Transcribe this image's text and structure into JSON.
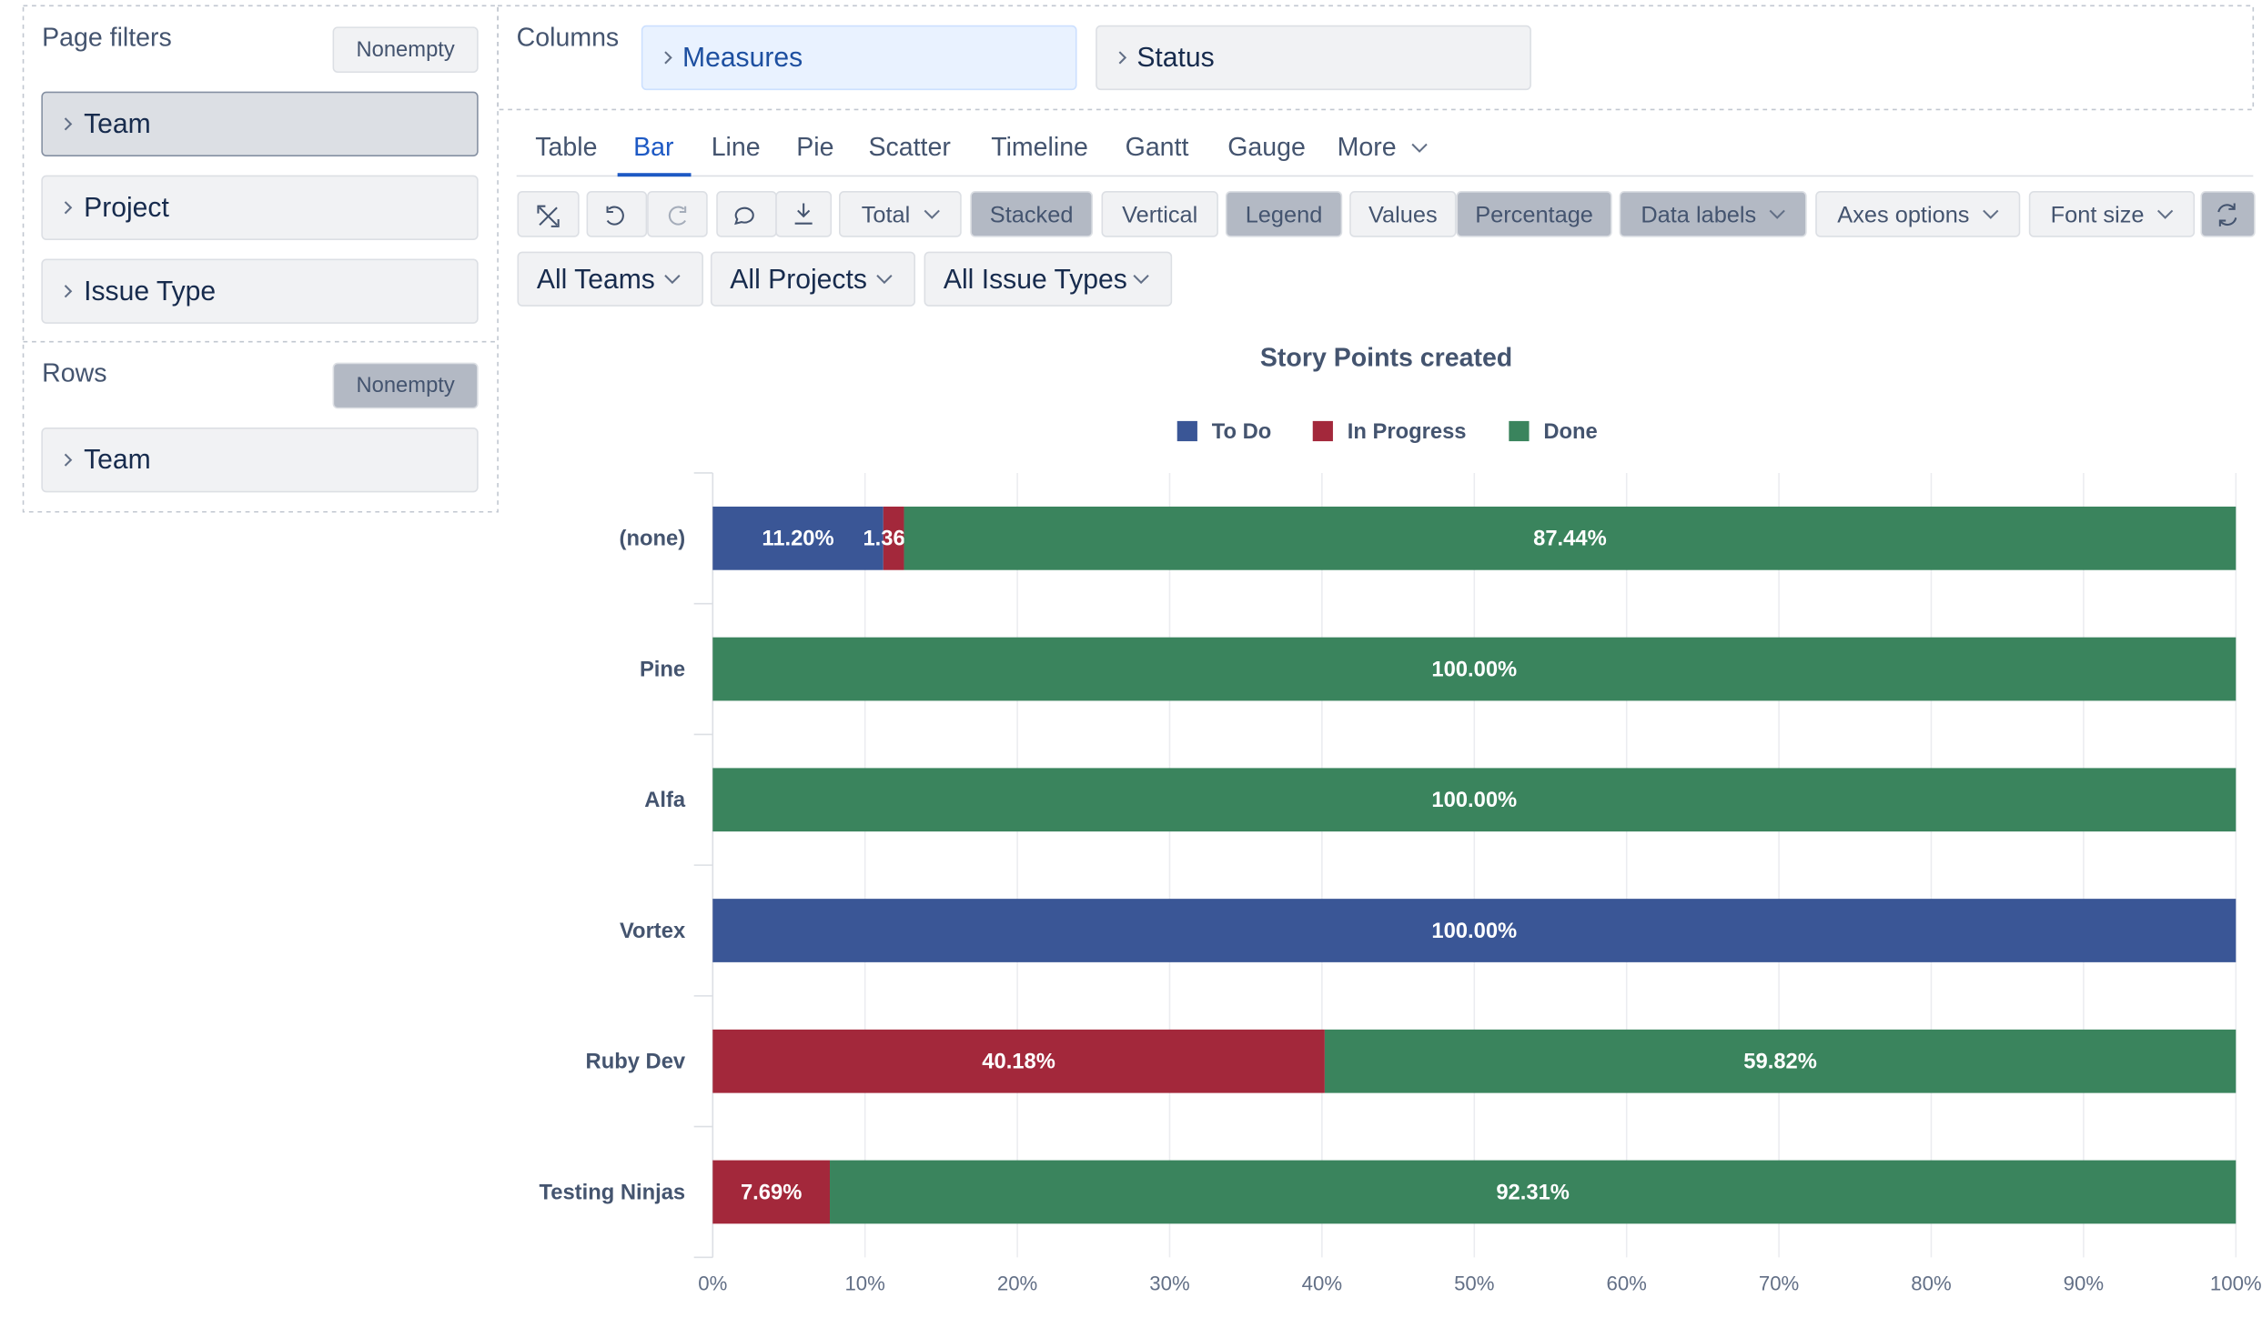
{
  "page_filters": {
    "title": "Page filters",
    "button": "Nonempty",
    "items": [
      "Team",
      "Project",
      "Issue Type"
    ]
  },
  "rows": {
    "title": "Rows",
    "button": "Nonempty",
    "items": [
      "Team"
    ]
  },
  "columns": {
    "title": "Columns",
    "items": [
      "Measures",
      "Status"
    ]
  },
  "tabs": [
    "Table",
    "Bar",
    "Line",
    "Pie",
    "Scatter",
    "Timeline",
    "Gantt",
    "Gauge",
    "More"
  ],
  "toolbar": [
    "Total",
    "Stacked",
    "Vertical",
    "Legend",
    "Values",
    "Percentage",
    "Data labels",
    "Axes options",
    "Font size"
  ],
  "filters": [
    "All Teams",
    "All Projects",
    "All Issue Types"
  ],
  "chart_data": {
    "type": "bar",
    "orientation": "horizontal",
    "stacked": true,
    "title": "Story Points created",
    "categories": [
      "(none)",
      "Pine",
      "Alfa",
      "Vortex",
      "Ruby Dev",
      "Testing Ninjas"
    ],
    "series": [
      {
        "name": "To Do",
        "color": "#3a5696",
        "values": [
          11.2,
          null,
          null,
          100,
          null,
          null
        ],
        "value_labels": [
          "11.20%",
          null,
          null,
          "100.00%",
          null,
          null
        ]
      },
      {
        "name": "In Progress",
        "color": "#a3283b",
        "values": [
          1.36,
          null,
          null,
          null,
          40.18,
          7.69
        ],
        "value_labels": [
          "1.36%",
          null,
          null,
          null,
          "40.18%",
          "7.69%"
        ]
      },
      {
        "name": "Done",
        "color": "#3a845d",
        "values": [
          87.44,
          100,
          100,
          null,
          59.82,
          92.31
        ],
        "value_labels": [
          "87.44%",
          "100.00%",
          "100.00%",
          null,
          "59.82%",
          "92.31%"
        ]
      }
    ],
    "xlim": [
      0,
      100
    ],
    "xticks": [
      {
        "value": 0,
        "label": "0%"
      },
      {
        "value": 10,
        "label": "10%"
      },
      {
        "value": 20,
        "label": "20%"
      },
      {
        "value": 30,
        "label": "30%"
      },
      {
        "value": 40,
        "label": "40%"
      },
      {
        "value": 50,
        "label": "50%"
      },
      {
        "value": 60,
        "label": "60%"
      },
      {
        "value": 70,
        "label": "70%"
      },
      {
        "value": 80,
        "label": "80%"
      },
      {
        "value": 90,
        "label": "90%"
      },
      {
        "value": 100,
        "label": "100%"
      }
    ],
    "grid": true,
    "legend": "top"
  }
}
